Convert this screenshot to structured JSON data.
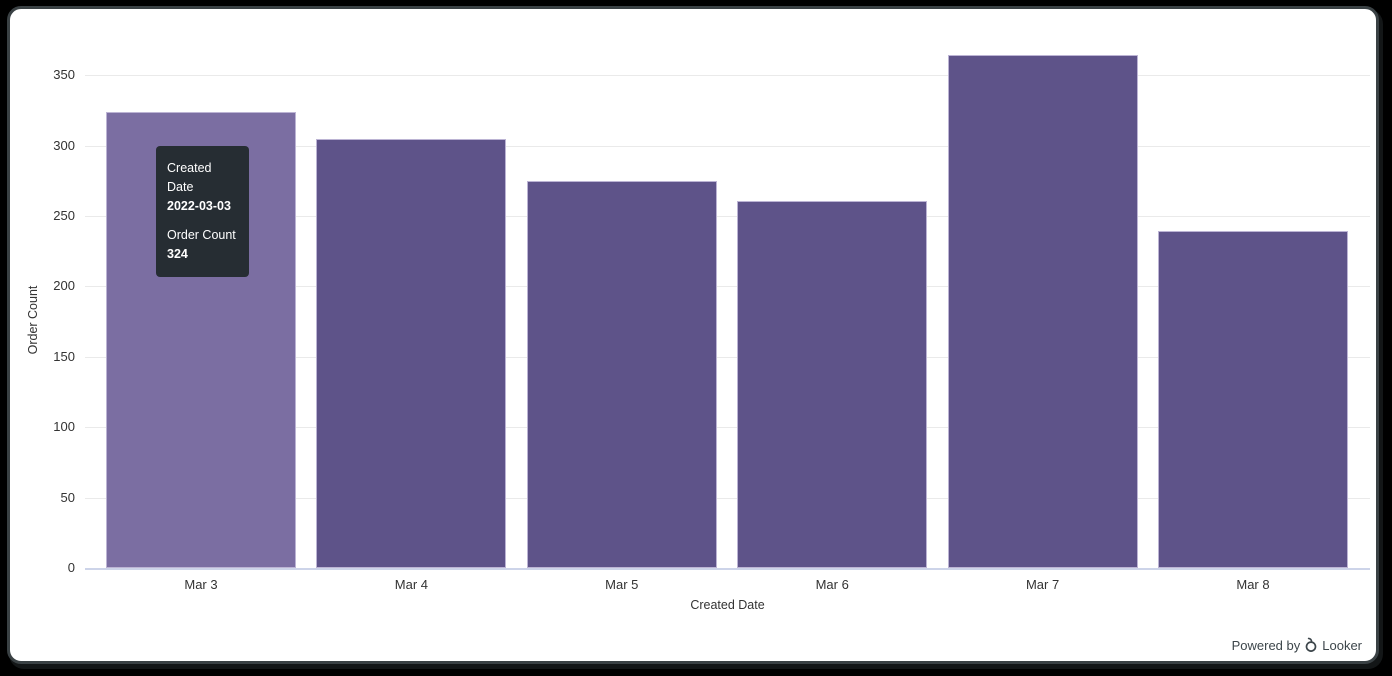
{
  "chart_data": {
    "type": "bar",
    "categories": [
      "Mar 3",
      "Mar 4",
      "Mar 5",
      "Mar 6",
      "Mar 7",
      "Mar 8"
    ],
    "values": [
      324,
      305,
      275,
      261,
      364,
      239
    ],
    "hovered_index": 0,
    "title": "",
    "xlabel": "Created Date",
    "ylabel": "Order Count",
    "ylim": [
      0,
      372
    ],
    "yticks": [
      0,
      50,
      100,
      150,
      200,
      250,
      300,
      350
    ],
    "grid": true,
    "legend": "none"
  },
  "tooltip": {
    "rows": [
      {
        "label": "Created Date",
        "value": "2022-03-03"
      },
      {
        "label": "Order Count",
        "value": "324"
      }
    ]
  },
  "footer": {
    "powered_by_text": "Powered by",
    "brand_name": "Looker",
    "logo": "looker-logo-icon"
  },
  "colors": {
    "bar": "#5e5389",
    "bar_hovered": "#7b6ea2",
    "bar_border": "#bcb4d4",
    "gridline": "#eaeaea",
    "axis_line": "#cdd4e9",
    "tick_text": "#333333",
    "tooltip_bg": "#262d33",
    "tooltip_text": "#ffffff",
    "footer_text": "#3d464b"
  }
}
